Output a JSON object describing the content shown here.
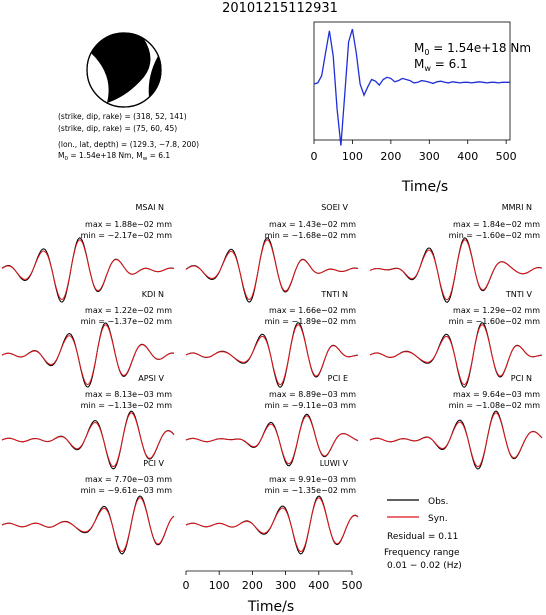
{
  "header": {
    "event_id": "20101215112931"
  },
  "mechanism": {
    "plane1": "(strike, dip, rake) = (318, 52, 141)",
    "plane2": "(strike, dip, rake) = (75, 60, 45)",
    "location": "(lon., lat, depth) = (129.3, −7.8, 200)",
    "moment_line_prefix": "M",
    "moment_line_sub": "0",
    "moment_line_rest": " = 1.54e+18 Nm, M",
    "moment_line_sub2": "w",
    "moment_line_tail": " = 6.1"
  },
  "stf": {
    "m0_label": "M",
    "m0_sub": "0",
    "m0_value": " = 1.54e+18 Nm",
    "mw_label": "M",
    "mw_sub": "w",
    "mw_value": " = 6.1",
    "xlabel": "Time/s",
    "xticks": [
      "0",
      "100",
      "200",
      "300",
      "400",
      "500"
    ],
    "color": "#1f2fd6"
  },
  "waveform_axis": {
    "xlabel": "Time/s",
    "xticks": [
      "0",
      "100",
      "200",
      "300",
      "400",
      "500"
    ]
  },
  "legend": {
    "obs": "Obs.",
    "syn": "Syn.",
    "obs_color": "#000000",
    "syn_color": "#e0161b",
    "residual": "Residual = 0.11",
    "freq_title": "Frequency range",
    "freq_range": "0.01 − 0.02 (Hz)"
  },
  "chart_data": [
    {
      "type": "line",
      "title": "",
      "xlabel": "Time/s",
      "ylabel": "",
      "xlim": [
        0,
        510
      ],
      "xticks": [
        0,
        100,
        200,
        300,
        400,
        500
      ],
      "series": [
        {
          "name": "",
          "x": [
            0,
            10,
            20,
            30,
            40,
            50,
            60,
            70,
            80,
            90,
            100,
            110,
            120,
            130,
            140,
            150,
            160,
            170,
            180,
            190,
            200,
            210,
            220,
            230,
            240,
            250,
            260,
            270,
            280,
            290,
            300,
            310,
            320,
            330,
            340,
            350,
            360,
            370,
            380,
            390,
            400,
            410,
            420,
            430,
            440,
            450,
            460,
            470,
            480,
            490,
            500,
            510
          ],
          "y": [
            0.0,
            0.02,
            0.15,
            0.55,
            0.95,
            0.5,
            -0.45,
            -1.1,
            -0.2,
            0.75,
            0.98,
            0.55,
            0.0,
            -0.2,
            -0.05,
            0.08,
            0.05,
            -0.02,
            0.08,
            0.12,
            0.1,
            0.04,
            0.06,
            0.1,
            0.08,
            0.06,
            0.02,
            0.03,
            0.06,
            0.05,
            0.03,
            0.01,
            0.04,
            0.05,
            0.03,
            0.02,
            0.04,
            0.03,
            0.02,
            0.03,
            0.03,
            0.02,
            0.03,
            0.04,
            0.03,
            0.02,
            0.03,
            0.03,
            0.02,
            0.03,
            0.03,
            0.03
          ]
        }
      ]
    },
    {
      "type": "line",
      "panels": [
        {
          "station": "MSAI N",
          "max": "max = 1.88e−02 mm",
          "min": "min = −2.17e−02 mm"
        },
        {
          "station": "SOEI V",
          "max": "max = 1.43e−02 mm",
          "min": "min = −1.68e−02 mm"
        },
        {
          "station": "MMRI N",
          "max": "max = 1.84e−02 mm",
          "min": "min = −1.60e−02 mm"
        },
        {
          "station": "KDI N",
          "max": "max = 1.22e−02 mm",
          "min": "min = −1.37e−02 mm"
        },
        {
          "station": "TNTI N",
          "max": "max = 1.66e−02 mm",
          "min": "min = −1.89e−02 mm"
        },
        {
          "station": "TNTI V",
          "max": "max = 1.29e−02 mm",
          "min": "min = −1.60e−02 mm"
        },
        {
          "station": "APSI V",
          "max": "max = 8.13e−03 mm",
          "min": "min = −1.13e−02 mm"
        },
        {
          "station": "PCI E",
          "max": "max = 8.89e−03 mm",
          "min": "min = −9.11e−03 mm"
        },
        {
          "station": "PCI N",
          "max": "max = 9.64e−03 mm",
          "min": "min = −1.08e−02 mm"
        },
        {
          "station": "PCI V",
          "max": "max = 7.70e−03 mm",
          "min": "min = −9.61e−03 mm"
        },
        {
          "station": "LUWI V",
          "max": "max = 9.91e−03 mm",
          "min": "min = −1.35e−02 mm"
        }
      ],
      "series": [
        {
          "name": "Obs.",
          "color": "#000000"
        },
        {
          "name": "Syn.",
          "color": "#e0161b"
        }
      ]
    }
  ]
}
